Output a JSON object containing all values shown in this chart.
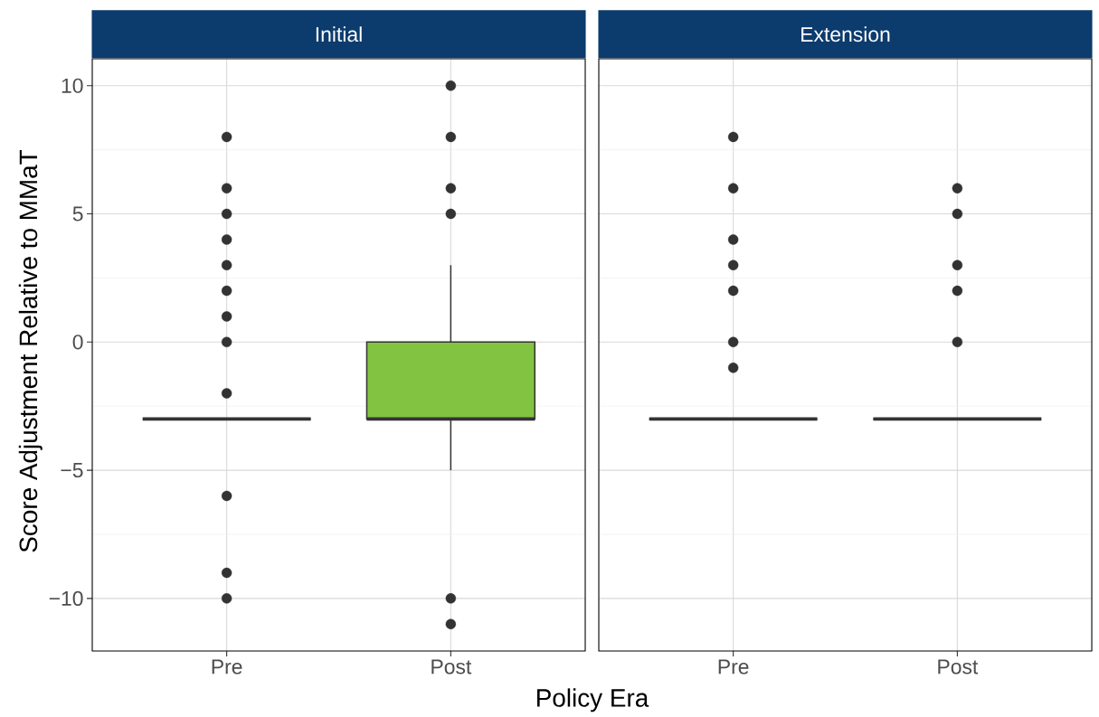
{
  "chart_data": [
    {
      "type": "box",
      "title": "Initial",
      "xlabel": "Policy Era",
      "ylabel": "Score Adjustment Relative to MMaT",
      "categories": [
        "Pre",
        "Post"
      ],
      "colors": [
        "#333333",
        "#82c341"
      ],
      "boxes": [
        {
          "low": -3,
          "q1": -3,
          "median": -3,
          "q3": -3,
          "high": -3,
          "outliers": [
            8,
            6,
            5,
            4,
            3,
            2,
            1,
            0,
            -2,
            -6,
            -9,
            -10
          ]
        },
        {
          "low": -5,
          "q1": -3,
          "median": -3,
          "q3": 0,
          "high": 3,
          "outliers": [
            10,
            8,
            6,
            5,
            -10,
            -11
          ]
        }
      ],
      "ylim": [
        -12.05,
        11.05
      ],
      "yticks": [
        {
          "value": -10,
          "label": "−10"
        },
        {
          "value": -5,
          "label": "−5"
        },
        0,
        5,
        10
      ],
      "grid": true,
      "marker": "circle"
    },
    {
      "type": "box",
      "title": "Extension",
      "categories": [
        "Pre",
        "Post"
      ],
      "boxes": [
        {
          "low": -3,
          "q1": -3,
          "median": -3,
          "q3": -3,
          "high": -3,
          "outliers": [
            8,
            6,
            4,
            3,
            2,
            0,
            -1
          ]
        },
        {
          "low": -3,
          "q1": -3,
          "median": -3,
          "q3": -3,
          "high": -3,
          "outliers": [
            6,
            5,
            3,
            2,
            0
          ]
        }
      ],
      "ylim": [
        -12.05,
        11.05
      ],
      "yticks": [
        -10,
        -5,
        0,
        5,
        10
      ],
      "grid": true,
      "marker": "circle",
      "tick_labels": "x"
    }
  ]
}
